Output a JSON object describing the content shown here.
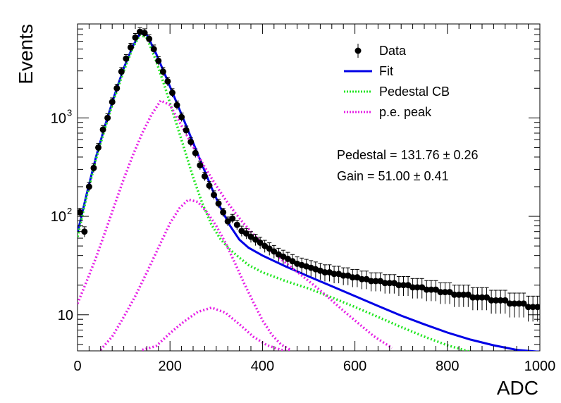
{
  "chart_data": {
    "type": "scatter",
    "title": "",
    "xlabel": "ADC",
    "ylabel": "Events",
    "xlim": [
      0,
      1000
    ],
    "ylim": [
      4.3,
      9000
    ],
    "y_scale": "log",
    "grid": false,
    "legend_position": "top-right",
    "x_ticks": [
      {
        "value": 0,
        "label": "0"
      },
      {
        "value": 200,
        "label": "200"
      },
      {
        "value": 400,
        "label": "400"
      },
      {
        "value": 600,
        "label": "600"
      },
      {
        "value": 800,
        "label": "800"
      },
      {
        "value": 1000,
        "label": "1000"
      }
    ],
    "y_ticks": [
      {
        "value": 10,
        "label": "10"
      },
      {
        "value": 100,
        "label": "10",
        "exp": "2"
      },
      {
        "value": 1000,
        "label": "10",
        "exp": "3"
      }
    ],
    "legend": [
      {
        "label": "Data",
        "kind": "marker",
        "color": "#000000"
      },
      {
        "label": "Fit",
        "kind": "line",
        "color": "#0000e6"
      },
      {
        "label": "Pedestal CB",
        "kind": "dots",
        "color": "#22e622"
      },
      {
        "label": "p.e. peak",
        "kind": "dots",
        "color": "#e61ee6"
      }
    ],
    "annotations": [
      "Pedestal = 131.76 ± 0.26",
      "Gain = 51.00 ± 0.41"
    ],
    "series": [
      {
        "name": "Data",
        "style": "markers_errorbars",
        "color": "#000000",
        "x": [
          5,
          15,
          25,
          35,
          45,
          55,
          65,
          75,
          85,
          95,
          105,
          115,
          125,
          135,
          145,
          155,
          165,
          175,
          185,
          195,
          205,
          215,
          225,
          235,
          245,
          255,
          265,
          275,
          285,
          295,
          305,
          315,
          325,
          335,
          345,
          355,
          365,
          375,
          385,
          395,
          405,
          415,
          425,
          435,
          445,
          455,
          465,
          475,
          485,
          495,
          505,
          515,
          525,
          535,
          545,
          555,
          565,
          575,
          585,
          595,
          605,
          615,
          625,
          635,
          645,
          655,
          665,
          675,
          685,
          695,
          705,
          715,
          725,
          735,
          745,
          755,
          765,
          775,
          785,
          795,
          805,
          815,
          825,
          835,
          845,
          855,
          865,
          875,
          885,
          895,
          905,
          915,
          925,
          935,
          945,
          955,
          965,
          975,
          985,
          995
        ],
        "y": [
          110,
          70,
          200,
          310,
          500,
          760,
          1000,
          1450,
          2000,
          2950,
          4000,
          5200,
          6550,
          7500,
          7300,
          6350,
          5000,
          3800,
          2950,
          2350,
          1800,
          1350,
          1020,
          750,
          570,
          440,
          330,
          255,
          205,
          165,
          135,
          110,
          89,
          95,
          82,
          71,
          67,
          62,
          58,
          54,
          50,
          47,
          44,
          41,
          39,
          37,
          35,
          33,
          32,
          31,
          30,
          29,
          28,
          27,
          27,
          26,
          26,
          25,
          25,
          24,
          24,
          23,
          23,
          22,
          22,
          22,
          21,
          21,
          21,
          20,
          20,
          20,
          19,
          19,
          19,
          18,
          18,
          18,
          17,
          17,
          17,
          16,
          16,
          16,
          16,
          15,
          15,
          15,
          15,
          14,
          14,
          14,
          14,
          13,
          13,
          13,
          13,
          12,
          12,
          12
        ],
        "y_err_frac": 0.2
      },
      {
        "name": "Fit",
        "style": "solid",
        "color": "#0000e6",
        "x": [
          0,
          20,
          40,
          60,
          80,
          100,
          120,
          135,
          150,
          170,
          190,
          210,
          230,
          250,
          270,
          290,
          310,
          330,
          350,
          370,
          400,
          450,
          500,
          550,
          600,
          650,
          700,
          750,
          800,
          850,
          900,
          950,
          1000
        ],
        "y": [
          68,
          170,
          400,
          850,
          1700,
          3200,
          5400,
          7200,
          7000,
          4500,
          2700,
          1600,
          950,
          560,
          330,
          195,
          120,
          80,
          58,
          48,
          40,
          31,
          24.5,
          19.5,
          15.5,
          12.3,
          9.8,
          8,
          6.6,
          5.6,
          4.9,
          4.4,
          4.2
        ]
      },
      {
        "name": "Pedestal CB",
        "style": "dotted",
        "color": "#22e622",
        "x": [
          0,
          20,
          40,
          60,
          80,
          100,
          120,
          135,
          150,
          170,
          190,
          210,
          230,
          250,
          270,
          290,
          310,
          330,
          350,
          370,
          400,
          450,
          500,
          550,
          600,
          650,
          700,
          750,
          800,
          850
        ],
        "y": [
          62,
          160,
          380,
          800,
          1600,
          3000,
          5200,
          7000,
          6500,
          3800,
          2000,
          1000,
          500,
          250,
          135,
          82,
          58,
          46,
          38,
          32,
          27,
          22,
          18.5,
          15,
          12,
          9.5,
          7.5,
          6,
          4.9,
          4.2
        ]
      },
      {
        "name": "p.e. peak 1",
        "style": "dotted",
        "color": "#e61ee6",
        "x": [
          0,
          20,
          40,
          60,
          80,
          100,
          120,
          140,
          160,
          180,
          200,
          220,
          240,
          260,
          280,
          300,
          320,
          340,
          360,
          380,
          400,
          430,
          460,
          490,
          520,
          550,
          580,
          610,
          640,
          680
        ],
        "y": [
          13,
          22,
          38,
          70,
          130,
          240,
          420,
          700,
          1080,
          1500,
          1350,
          920,
          620,
          420,
          290,
          205,
          148,
          110,
          84,
          66,
          53,
          40,
          31,
          24,
          18.5,
          14,
          10.5,
          8,
          6.1,
          4.6
        ]
      },
      {
        "name": "p.e. peak 2",
        "style": "dotted",
        "color": "#e61ee6",
        "x": [
          50,
          75,
          100,
          125,
          150,
          175,
          200,
          220,
          240,
          260,
          280,
          300,
          320,
          340,
          360,
          380,
          400,
          420,
          440,
          460
        ],
        "y": [
          4.4,
          6,
          9.5,
          15.5,
          27,
          48,
          85,
          120,
          148,
          140,
          110,
          80,
          54,
          34,
          21,
          13.5,
          8.8,
          6.3,
          5,
          4.4
        ]
      },
      {
        "name": "p.e. peak 3",
        "style": "dotted",
        "color": "#e61ee6",
        "x": [
          140,
          170,
          200,
          230,
          260,
          290,
          320,
          350,
          380,
          410,
          440,
          460
        ],
        "y": [
          4.4,
          4.8,
          6.5,
          8.5,
          10.7,
          11.8,
          10.5,
          8,
          6,
          4.9,
          4.4,
          4.3
        ]
      }
    ]
  }
}
